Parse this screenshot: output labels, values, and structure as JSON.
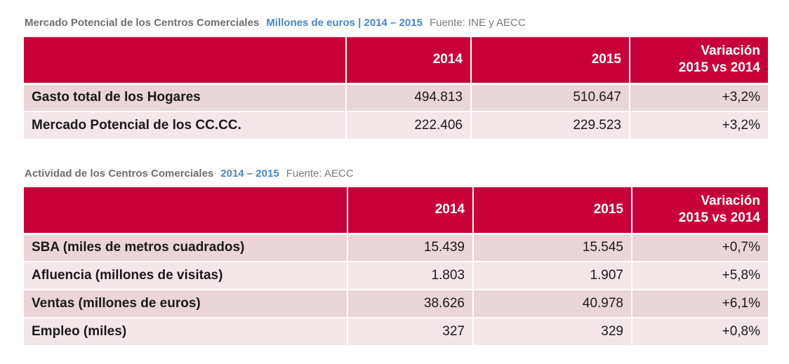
{
  "section1": {
    "title": "Mercado Potencial de los Centros Comerciales",
    "units": "Millones de euros | 2014 – 2015",
    "source": "Fuente: INE y AECC",
    "headers": [
      "",
      "2014",
      "2015",
      "Variación\n2015 vs 2014"
    ],
    "header_var_line1": "Variación",
    "header_var_line2": "2015 vs 2014",
    "rows": [
      {
        "label": "Gasto total de los Hogares",
        "v2014": "494.813",
        "v2015": "510.647",
        "var": "+3,2%"
      },
      {
        "label": "Mercado Potencial de los CC.CC.",
        "v2014": "222.406",
        "v2015": "229.523",
        "var": "+3,2%"
      }
    ]
  },
  "section2": {
    "title": "Actividad de los Centros Comerciales",
    "units": "2014 – 2015",
    "source": "Fuente: AECC",
    "header_2014": "2014",
    "header_2015": "2015",
    "header_var_line1": "Variación",
    "header_var_line2": "2015 vs 2014",
    "rows": [
      {
        "label": "SBA (miles de metros cuadrados)",
        "v2014": "15.439",
        "v2015": "15.545",
        "var": "+0,7%"
      },
      {
        "label": "Afluencia (millones de visitas)",
        "v2014": "1.803",
        "v2015": "1.907",
        "var": "+5,8%"
      },
      {
        "label": "Ventas (millones de euros)",
        "v2014": "38.626",
        "v2015": "40.978",
        "var": "+6,1%"
      },
      {
        "label": "Empleo (miles)",
        "v2014": "327",
        "v2015": "329",
        "var": "+0,8%"
      }
    ]
  },
  "colors": {
    "header_bg": "#c8003a",
    "row_odd": "#ead5d8",
    "row_even": "#f3e7e9",
    "accent_blue": "#4a86c5"
  }
}
